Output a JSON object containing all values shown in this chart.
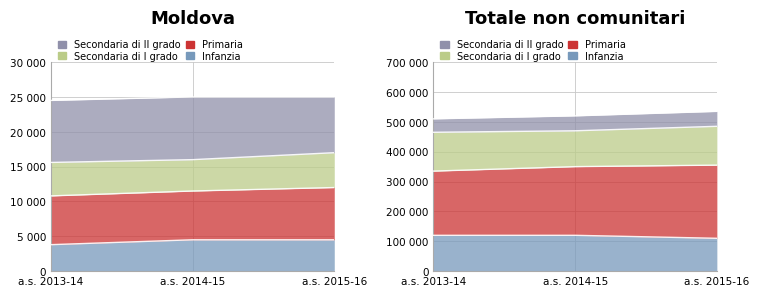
{
  "chart1": {
    "title": "Moldova",
    "categories": [
      "a.s. 2013-14",
      "a.s. 2014-15",
      "a.s. 2015-16"
    ],
    "series": {
      "Infanzia": [
        3800,
        4500,
        4500
      ],
      "Primaria": [
        7000,
        7000,
        7500
      ],
      "Secondaria di I grado": [
        4800,
        4500,
        5000
      ],
      "Secondaria di II grado": [
        8900,
        9000,
        8000
      ]
    },
    "ylim": [
      0,
      30000
    ],
    "yticks": [
      0,
      5000,
      10000,
      15000,
      20000,
      25000,
      30000
    ],
    "ytick_labels": [
      "0",
      "5 000",
      "10 000",
      "15 000",
      "20 000",
      "25 000",
      "30 000"
    ]
  },
  "chart2": {
    "title": "Totale non comunitari",
    "categories": [
      "a.s. 2013-14",
      "a.s. 2014-15",
      "a.s. 2015-16"
    ],
    "series": {
      "Infanzia": [
        120000,
        120000,
        110000
      ],
      "Primaria": [
        215000,
        230000,
        245000
      ],
      "Secondaria di I grado": [
        130000,
        120000,
        130000
      ],
      "Secondaria di II grado": [
        45000,
        50000,
        50000
      ]
    },
    "ylim": [
      0,
      700000
    ],
    "yticks": [
      0,
      100000,
      200000,
      300000,
      400000,
      500000,
      600000,
      700000
    ],
    "ytick_labels": [
      "0",
      "100 000",
      "200 000",
      "300 000",
      "400 000",
      "500 000",
      "600 000",
      "700 000"
    ]
  },
  "colors": {
    "Secondaria di II grado": "#9090AA",
    "Secondaria di I grado": "#BBCC88",
    "Primaria": "#CC3333",
    "Infanzia": "#7799BB"
  },
  "legend_order": [
    "Secondaria di II grado",
    "Secondaria di I grado",
    "Primaria",
    "Infanzia"
  ],
  "bg_color": "#FFFFFF",
  "grid_color": "#C8C8C8",
  "title_fontsize": 13,
  "tick_fontsize": 7.5,
  "legend_fontsize": 7.0
}
